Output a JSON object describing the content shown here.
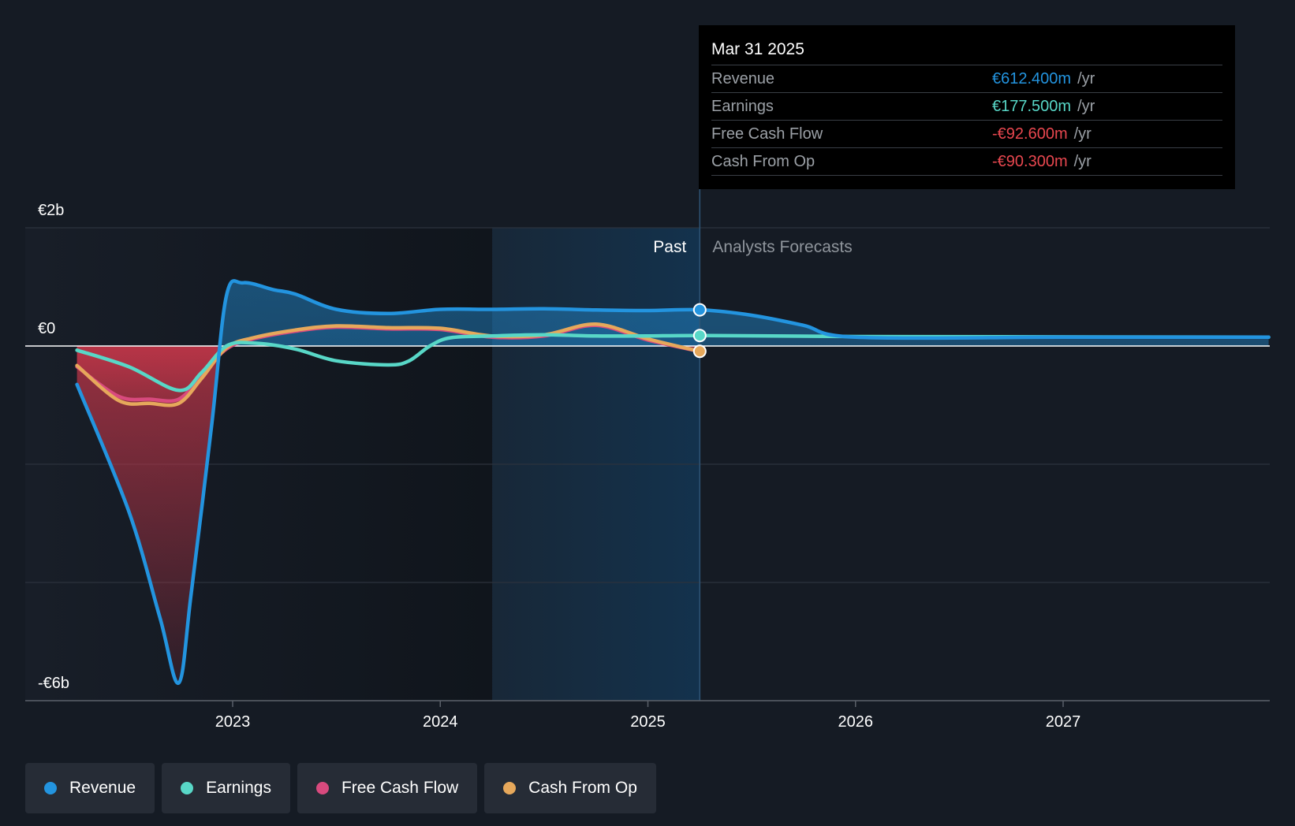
{
  "chart_data": {
    "type": "line",
    "y_ticks": [
      {
        "value": 2,
        "label": "€2b"
      },
      {
        "value": 0,
        "label": "€0"
      },
      {
        "value": -6,
        "label": "-€6b"
      }
    ],
    "y_unit": "€b",
    "ylim": [
      -6,
      2
    ],
    "gridlines": [
      2,
      0,
      -2,
      -4,
      -6
    ],
    "x_ticks": [
      {
        "value": 2023,
        "label": "2023"
      },
      {
        "value": 2024,
        "label": "2024"
      },
      {
        "value": 2025,
        "label": "2025"
      },
      {
        "value": 2026,
        "label": "2026"
      },
      {
        "value": 2027,
        "label": "2027"
      }
    ],
    "xlim": [
      2022.0,
      2027.99
    ],
    "past_label": "Past",
    "forecast_label": "Analysts Forecasts",
    "highlight_range": [
      2024.25,
      2025.25
    ],
    "divider_x": 2025.25,
    "series": [
      {
        "name": "Revenue",
        "color": "#2394df",
        "fill": true,
        "points": [
          [
            2022.25,
            -0.65
          ],
          [
            2022.5,
            -2.8
          ],
          [
            2022.65,
            -4.6
          ],
          [
            2022.74,
            -5.7
          ],
          [
            2022.8,
            -4.2
          ],
          [
            2022.9,
            -1.3
          ],
          [
            2022.97,
            0.85
          ],
          [
            2023.05,
            1.07
          ],
          [
            2023.2,
            0.95
          ],
          [
            2023.3,
            0.88
          ],
          [
            2023.5,
            0.62
          ],
          [
            2023.75,
            0.55
          ],
          [
            2024.0,
            0.62
          ],
          [
            2024.25,
            0.62
          ],
          [
            2024.5,
            0.63
          ],
          [
            2024.75,
            0.61
          ],
          [
            2025.0,
            0.6
          ],
          [
            2025.25,
            0.612
          ],
          [
            2025.5,
            0.52
          ],
          [
            2025.75,
            0.35
          ],
          [
            2026.0,
            0.15
          ],
          [
            2027.0,
            0.15
          ],
          [
            2027.99,
            0.15
          ]
        ]
      },
      {
        "name": "Earnings",
        "color": "#58d7c7",
        "fill": false,
        "points": [
          [
            2022.25,
            -0.07
          ],
          [
            2022.5,
            -0.35
          ],
          [
            2022.74,
            -0.75
          ],
          [
            2022.85,
            -0.45
          ],
          [
            2022.97,
            0.0
          ],
          [
            2023.1,
            0.05
          ],
          [
            2023.3,
            -0.05
          ],
          [
            2023.5,
            -0.25
          ],
          [
            2023.75,
            -0.32
          ],
          [
            2023.85,
            -0.25
          ],
          [
            2023.95,
            0.0
          ],
          [
            2024.05,
            0.14
          ],
          [
            2024.25,
            0.17
          ],
          [
            2024.5,
            0.19
          ],
          [
            2024.75,
            0.17
          ],
          [
            2025.0,
            0.17
          ],
          [
            2025.25,
            0.1775
          ],
          [
            2026.0,
            0.16
          ],
          [
            2027.99,
            0.15
          ]
        ]
      },
      {
        "name": "Free Cash Flow",
        "color": "#d84a7e",
        "fill": true,
        "points": [
          [
            2022.25,
            -0.35
          ],
          [
            2022.45,
            -0.85
          ],
          [
            2022.6,
            -0.9
          ],
          [
            2022.74,
            -0.9
          ],
          [
            2022.85,
            -0.5
          ],
          [
            2022.97,
            -0.05
          ],
          [
            2023.1,
            0.12
          ],
          [
            2023.3,
            0.25
          ],
          [
            2023.5,
            0.32
          ],
          [
            2023.75,
            0.29
          ],
          [
            2024.0,
            0.28
          ],
          [
            2024.25,
            0.15
          ],
          [
            2024.5,
            0.17
          ],
          [
            2024.75,
            0.35
          ],
          [
            2025.0,
            0.1
          ],
          [
            2025.25,
            -0.0926
          ]
        ]
      },
      {
        "name": "Cash From Op",
        "color": "#e6a85b",
        "fill": false,
        "points": [
          [
            2022.25,
            -0.33
          ],
          [
            2022.45,
            -0.92
          ],
          [
            2022.6,
            -0.97
          ],
          [
            2022.74,
            -0.97
          ],
          [
            2022.85,
            -0.55
          ],
          [
            2022.97,
            -0.03
          ],
          [
            2023.1,
            0.14
          ],
          [
            2023.3,
            0.27
          ],
          [
            2023.5,
            0.34
          ],
          [
            2023.75,
            0.31
          ],
          [
            2024.0,
            0.3
          ],
          [
            2024.25,
            0.17
          ],
          [
            2024.5,
            0.19
          ],
          [
            2024.75,
            0.37
          ],
          [
            2025.0,
            0.12
          ],
          [
            2025.25,
            -0.0903
          ]
        ]
      }
    ],
    "markers": [
      {
        "series": "Revenue",
        "x": 2025.25,
        "y": 0.612
      },
      {
        "series": "Earnings",
        "x": 2025.25,
        "y": 0.1775
      },
      {
        "series": "Cash From Op",
        "x": 2025.25,
        "y": -0.0903
      }
    ]
  },
  "tooltip": {
    "date": "Mar 31 2025",
    "rows": [
      {
        "name": "Revenue",
        "value": "€612.400m",
        "unit": "/yr",
        "color": "#2394df"
      },
      {
        "name": "Earnings",
        "value": "€177.500m",
        "unit": "/yr",
        "color": "#58d7c7"
      },
      {
        "name": "Free Cash Flow",
        "value": "-€92.600m",
        "unit": "/yr",
        "color": "#e8474f"
      },
      {
        "name": "Cash From Op",
        "value": "-€90.300m",
        "unit": "/yr",
        "color": "#e8474f"
      }
    ]
  },
  "legend": [
    {
      "label": "Revenue",
      "color": "#2394df"
    },
    {
      "label": "Earnings",
      "color": "#58d7c7"
    },
    {
      "label": "Free Cash Flow",
      "color": "#d84a7e"
    },
    {
      "label": "Cash From Op",
      "color": "#e6a85b"
    }
  ]
}
